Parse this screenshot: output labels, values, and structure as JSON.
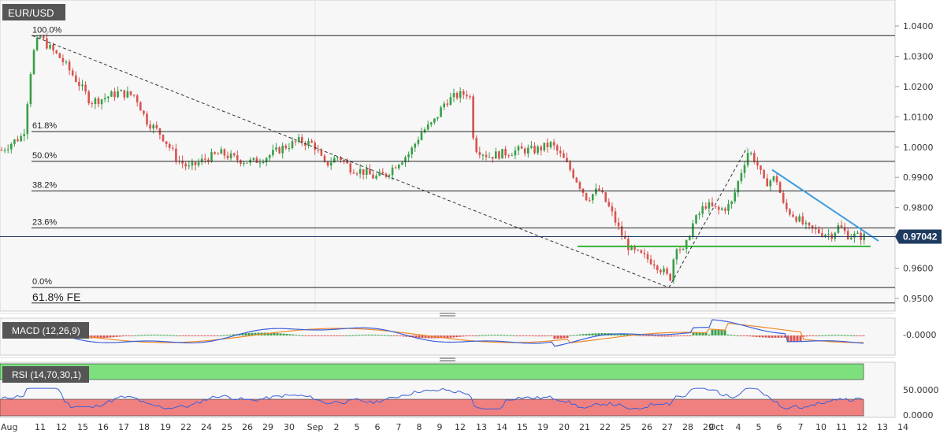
{
  "chart_data": {
    "type": "candlestick",
    "symbol": "EUR/USD",
    "current_price": "0.97042",
    "x_labels": [
      "Aug",
      "11",
      "12",
      "15",
      "16",
      "17",
      "18",
      "19",
      "22",
      "24",
      "25",
      "26",
      "29",
      "30",
      "Sep",
      "2",
      "5",
      "6",
      "7",
      "8",
      "9",
      "12",
      "13",
      "14",
      "15",
      "19",
      "20",
      "21",
      "22",
      "25",
      "26",
      "27",
      "28",
      "29",
      "Oct",
      "4",
      "5",
      "6",
      "7",
      "10",
      "11",
      "12",
      "13",
      "14"
    ],
    "price_axis": {
      "ticks": [
        "1.0400",
        "1.0300",
        "1.0200",
        "1.0100",
        "1.0000",
        "0.9900",
        "0.9800",
        "0.9600",
        "0.9500"
      ],
      "ylim": [
        0.9475,
        1.044
      ]
    },
    "fib_levels": [
      {
        "label": "100.0%",
        "price": 1.0368
      },
      {
        "label": "61.8%",
        "price": 1.0051
      },
      {
        "label": "50.0%",
        "price": 0.9953
      },
      {
        "label": "38.2%",
        "price": 0.9855
      },
      {
        "label": "23.6%",
        "price": 0.9733
      },
      {
        "label": "0.0%",
        "price": 0.9536
      },
      {
        "label": "61.8% FE",
        "price": 0.9485
      }
    ],
    "support_level": 0.9672,
    "trendlines": [
      {
        "name": "fib-retracement-line",
        "from": {
          "x": "11",
          "price": 1.0368
        },
        "to": {
          "x": "28",
          "price": 0.9536
        },
        "style": "dashed"
      },
      {
        "name": "expansion-line",
        "from": {
          "x": "28",
          "price": 0.9536
        },
        "to": {
          "x": "4",
          "price": 0.9998
        },
        "style": "dashed"
      },
      {
        "name": "resistance-line",
        "from": {
          "x": "6",
          "price": 0.9925
        },
        "to": {
          "x": "13",
          "price": 0.969
        },
        "style": "solid",
        "color": "#3e9ce0"
      }
    ],
    "macd": {
      "label": "MACD (12,26,9)",
      "ticks": [
        "-0.0000"
      ]
    },
    "rsi": {
      "label": "RSI (14,70,30,1)",
      "ticks": [
        "50.0000",
        "0.0000"
      ],
      "overbought": 70,
      "oversold": 30
    },
    "colors": {
      "up": "#3a9e48",
      "down": "#d9534f",
      "fib_line": "#222222",
      "support": "#35b338",
      "resistance": "#3e9ce0",
      "macd_line": "#3b5fd9",
      "signal_line": "#ee8a2a",
      "rsi_line": "#3b5fd9",
      "overbought_zone": "#7de07d",
      "oversold_zone": "#f08080",
      "label_bg": "#555555",
      "price_tag": "#1e3a5f"
    }
  }
}
